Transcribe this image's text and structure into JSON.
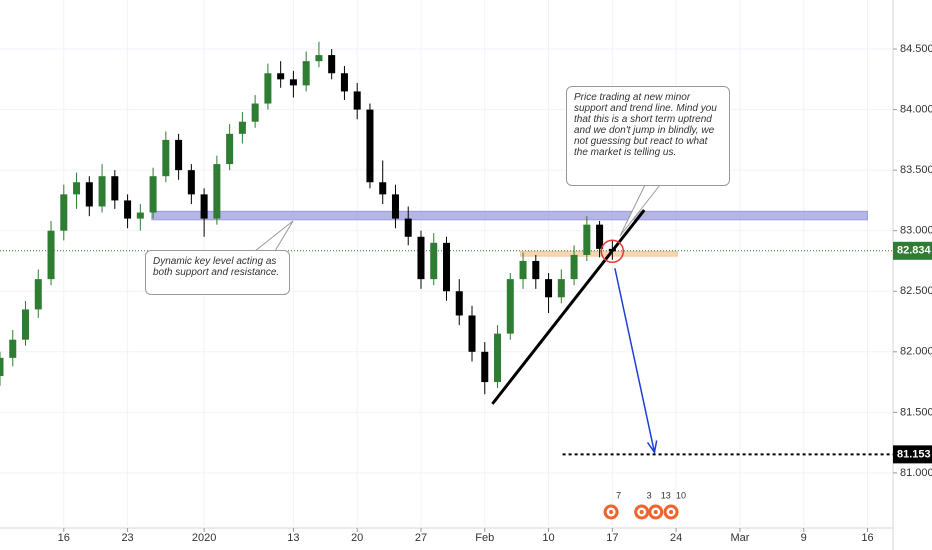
{
  "chart_data": {
    "type": "candlestick",
    "up_color": "#2e7d32",
    "down_color": "#000000",
    "xlim": [
      0,
      70
    ],
    "ylim": [
      80.545,
      84.905
    ],
    "xticks": [
      {
        "value": 5,
        "label": "16"
      },
      {
        "value": 10,
        "label": "23"
      },
      {
        "value": 16,
        "label": "2020"
      },
      {
        "value": 23,
        "label": "13"
      },
      {
        "value": 28,
        "label": "20"
      },
      {
        "value": 33,
        "label": "27"
      },
      {
        "value": 38,
        "label": "Feb"
      },
      {
        "value": 43,
        "label": "10"
      },
      {
        "value": 48,
        "label": "17"
      },
      {
        "value": 53,
        "label": "24"
      },
      {
        "value": 58,
        "label": "Mar"
      },
      {
        "value": 63,
        "label": "9"
      },
      {
        "value": 68,
        "label": "16"
      }
    ],
    "yticks": [
      {
        "value": 81,
        "label": "81.000"
      },
      {
        "value": 81.5,
        "label": "81.500"
      },
      {
        "value": 82,
        "label": "82.000"
      },
      {
        "value": 82.5,
        "label": "82.500"
      },
      {
        "value": 83,
        "label": "83.000"
      },
      {
        "value": 83.5,
        "label": "83.500"
      },
      {
        "value": 84,
        "label": "84.000"
      },
      {
        "value": 84.5,
        "label": "84.500"
      }
    ],
    "grid": true,
    "candles": [
      [
        81.8,
        82.0,
        81.72,
        81.95
      ],
      [
        81.95,
        82.18,
        81.88,
        82.1
      ],
      [
        82.1,
        82.42,
        82.05,
        82.35
      ],
      [
        82.35,
        82.68,
        82.28,
        82.6
      ],
      [
        82.6,
        83.08,
        82.55,
        83.0
      ],
      [
        83.0,
        83.38,
        82.92,
        83.3
      ],
      [
        83.3,
        83.48,
        83.18,
        83.4
      ],
      [
        83.4,
        83.45,
        83.12,
        83.2
      ],
      [
        83.2,
        83.55,
        83.15,
        83.45
      ],
      [
        83.45,
        83.5,
        83.18,
        83.25
      ],
      [
        83.25,
        83.3,
        83.02,
        83.1
      ],
      [
        83.1,
        83.22,
        83.0,
        83.15
      ],
      [
        83.15,
        83.52,
        83.1,
        83.45
      ],
      [
        83.45,
        83.82,
        83.4,
        83.75
      ],
      [
        83.75,
        83.8,
        83.42,
        83.5
      ],
      [
        83.5,
        83.55,
        83.22,
        83.3
      ],
      [
        83.3,
        83.35,
        82.95,
        83.1
      ],
      [
        83.1,
        83.62,
        83.05,
        83.55
      ],
      [
        83.55,
        83.88,
        83.5,
        83.8
      ],
      [
        83.8,
        83.98,
        83.72,
        83.9
      ],
      [
        83.9,
        84.12,
        83.85,
        84.05
      ],
      [
        84.05,
        84.38,
        84.0,
        84.3
      ],
      [
        84.3,
        84.4,
        84.18,
        84.25
      ],
      [
        84.25,
        84.32,
        84.1,
        84.2
      ],
      [
        84.2,
        84.48,
        84.15,
        84.4
      ],
      [
        84.4,
        84.56,
        84.35,
        84.45
      ],
      [
        84.45,
        84.5,
        84.25,
        84.3
      ],
      [
        84.3,
        84.36,
        84.08,
        84.15
      ],
      [
        84.15,
        84.22,
        83.92,
        84.0
      ],
      [
        84.0,
        84.05,
        83.35,
        83.4
      ],
      [
        83.4,
        83.58,
        83.22,
        83.3
      ],
      [
        83.3,
        83.38,
        83.02,
        83.1
      ],
      [
        83.1,
        83.2,
        82.88,
        82.95
      ],
      [
        82.95,
        83.0,
        82.52,
        82.6
      ],
      [
        82.6,
        82.98,
        82.55,
        82.9
      ],
      [
        82.9,
        82.95,
        82.42,
        82.5
      ],
      [
        82.5,
        82.6,
        82.22,
        82.3
      ],
      [
        82.3,
        82.38,
        81.92,
        82.0
      ],
      [
        82.0,
        82.08,
        81.65,
        81.75
      ],
      [
        81.75,
        82.22,
        81.7,
        82.15
      ],
      [
        82.15,
        82.65,
        82.1,
        82.6
      ],
      [
        82.6,
        82.82,
        82.52,
        82.75
      ],
      [
        82.75,
        82.8,
        82.52,
        82.6
      ],
      [
        82.6,
        82.65,
        82.32,
        82.45
      ],
      [
        82.45,
        82.68,
        82.4,
        82.6
      ],
      [
        82.6,
        82.88,
        82.55,
        82.8
      ],
      [
        82.8,
        83.12,
        82.75,
        83.05
      ],
      [
        83.05,
        83.08,
        82.78,
        82.85
      ],
      [
        82.85,
        82.92,
        82.76,
        82.83
      ]
    ],
    "last_price": 82.834,
    "last_price_color": "#2e7d32",
    "target_price": 81.153,
    "target_start": 44.1,
    "zones": [
      {
        "x": [
          11.9,
          68.0
        ],
        "y": [
          83.09,
          83.16
        ],
        "color": "#9c9ce0"
      },
      {
        "x": [
          40.8,
          53.1
        ],
        "y": [
          82.79,
          82.83
        ],
        "color": "#f5c89a"
      }
    ],
    "trend_line": {
      "x": [
        38.6,
        50.5
      ],
      "y": [
        81.57,
        83.17
      ]
    },
    "arrow": {
      "x": [
        48.2,
        51.3
      ],
      "y": [
        82.69,
        81.17
      ]
    },
    "circle": {
      "x": 48,
      "y": 82.83
    },
    "callouts": [
      "Dynamic key level acting as both support and resistance.",
      "Price trading at new minor support and trend line. Mind you that this is a short term uptrend and we don't jump in blindly, we not guessing but react to what the market is telling us."
    ],
    "events": [
      {
        "x": 47.9,
        "count": 7
      },
      {
        "x": 50.3,
        "count": 3
      },
      {
        "x": 51.4,
        "count": 13
      },
      {
        "x": 52.6,
        "count": 10
      }
    ]
  }
}
